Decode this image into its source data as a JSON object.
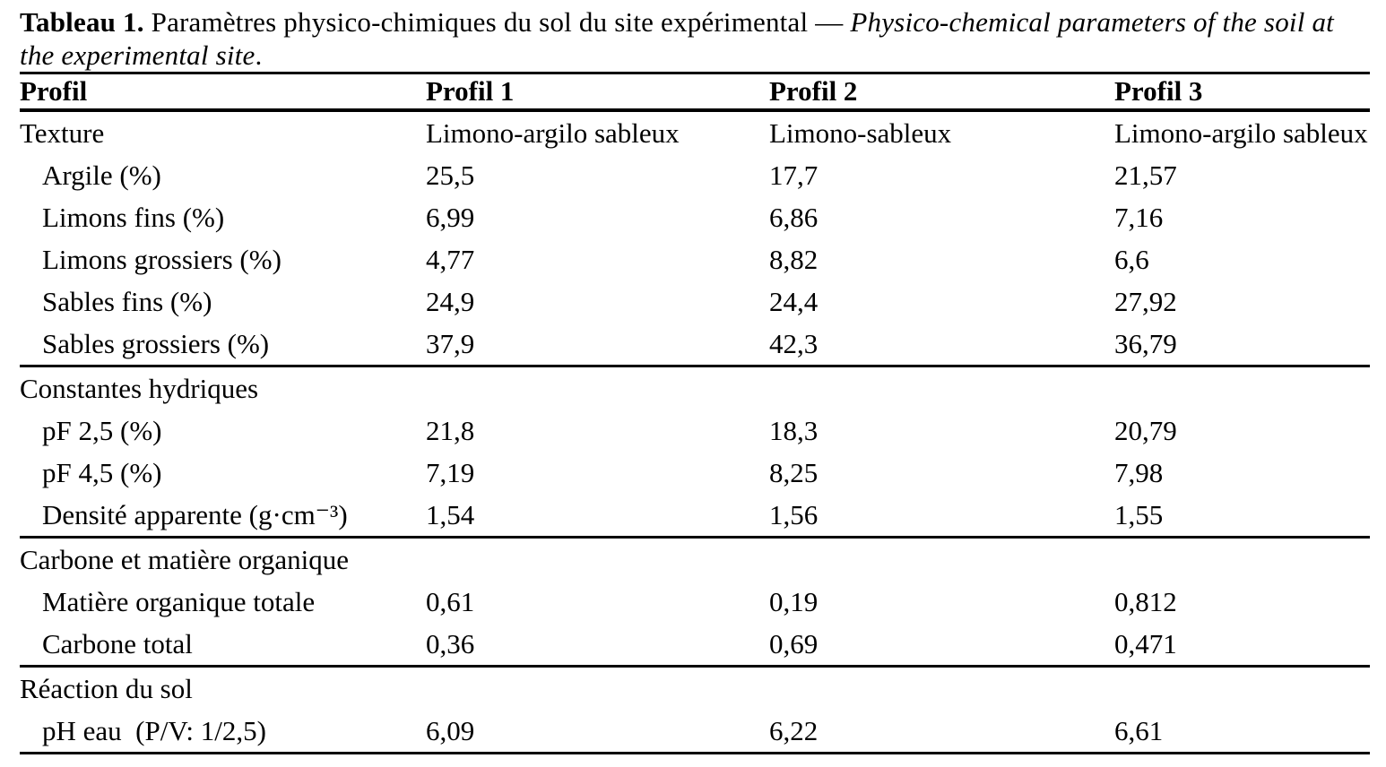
{
  "caption": {
    "label": "Tableau 1.",
    "fr": " Paramètres physico-chimiques du sol du site expérimental",
    "dash": " — ",
    "en": "Physico-chemical parameters of the soil at the experimental site",
    "period": "."
  },
  "table": {
    "columns": [
      "Profil",
      "Profil 1",
      "Profil 2",
      "Profil 3"
    ],
    "rows": [
      {
        "type": "data",
        "indent": false,
        "rule_after": false,
        "cells": [
          "Texture",
          "Limono-argilo sableux",
          "Limono-sableux",
          "Limono-argilo sableux"
        ]
      },
      {
        "type": "data",
        "indent": true,
        "rule_after": false,
        "cells": [
          "Argile (%)",
          "25,5",
          "17,7",
          "21,57"
        ]
      },
      {
        "type": "data",
        "indent": true,
        "rule_after": false,
        "cells": [
          "Limons fins (%)",
          "6,99",
          "6,86",
          "7,16"
        ]
      },
      {
        "type": "data",
        "indent": true,
        "rule_after": false,
        "cells": [
          "Limons grossiers (%)",
          "4,77",
          "8,82",
          "6,6"
        ]
      },
      {
        "type": "data",
        "indent": true,
        "rule_after": false,
        "cells": [
          "Sables fins (%)",
          "24,9",
          "24,4",
          "27,92"
        ]
      },
      {
        "type": "data",
        "indent": true,
        "rule_after": true,
        "cells": [
          "Sables grossiers (%)",
          "37,9",
          "42,3",
          "36,79"
        ]
      },
      {
        "type": "section",
        "indent": false,
        "rule_after": false,
        "cells": [
          "Constantes hydriques",
          "",
          "",
          ""
        ]
      },
      {
        "type": "data",
        "indent": true,
        "rule_after": false,
        "cells": [
          "pF 2,5 (%)",
          "21,8",
          "18,3",
          "20,79"
        ]
      },
      {
        "type": "data",
        "indent": true,
        "rule_after": false,
        "cells": [
          "pF 4,5 (%)",
          "7,19",
          "8,25",
          "7,98"
        ]
      },
      {
        "type": "data",
        "indent": true,
        "rule_after": true,
        "cells": [
          "Densité apparente (g·cm⁻³)",
          "1,54",
          "1,56",
          "1,55"
        ]
      },
      {
        "type": "section",
        "indent": false,
        "rule_after": false,
        "cells": [
          "Carbone et matière organique",
          "",
          "",
          ""
        ]
      },
      {
        "type": "data",
        "indent": true,
        "rule_after": false,
        "cells": [
          "Matière organique totale",
          "0,61",
          "0,19",
          "0,812"
        ]
      },
      {
        "type": "data",
        "indent": true,
        "rule_after": true,
        "cells": [
          "Carbone total",
          "0,36",
          "0,69",
          "0,471"
        ]
      },
      {
        "type": "section",
        "indent": false,
        "rule_after": false,
        "cells": [
          "Réaction du sol",
          "",
          "",
          ""
        ]
      },
      {
        "type": "data",
        "indent": true,
        "rule_after": true,
        "cells": [
          "pH eau  (P/V: 1/2,5)",
          "6,09",
          "6,22",
          "6,61"
        ]
      }
    ]
  },
  "colors": {
    "text": "#000000",
    "background": "#ffffff",
    "rule": "#000000"
  }
}
